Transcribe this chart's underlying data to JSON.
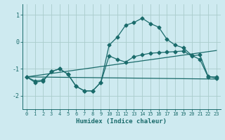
{
  "xlabel": "Humidex (Indice chaleur)",
  "background_color": "#ceeaf0",
  "grid_color": "#b8d8e0",
  "line_color": "#1a6b6b",
  "xlim": [
    -0.5,
    23.5
  ],
  "ylim": [
    -2.5,
    1.4
  ],
  "yticks": [
    -2,
    -1,
    0,
    1
  ],
  "xticks": [
    0,
    1,
    2,
    3,
    4,
    5,
    6,
    7,
    8,
    9,
    10,
    11,
    12,
    13,
    14,
    15,
    16,
    17,
    18,
    19,
    20,
    21,
    22,
    23
  ],
  "curve1_x": [
    0,
    1,
    2,
    3,
    4,
    5,
    6,
    7,
    8,
    9,
    10,
    11,
    12,
    13,
    14,
    15,
    16,
    17,
    18,
    19,
    20,
    21,
    22,
    23
  ],
  "curve1_y": [
    -1.3,
    -1.5,
    -1.45,
    -1.1,
    -1.0,
    -1.2,
    -1.65,
    -1.82,
    -1.82,
    -1.5,
    -0.12,
    0.18,
    0.62,
    0.72,
    0.88,
    0.68,
    0.55,
    0.1,
    -0.12,
    -0.22,
    -0.5,
    -0.65,
    -1.3,
    -1.3
  ],
  "curve2_x": [
    0,
    1,
    2,
    3,
    4,
    5,
    6,
    7,
    8,
    9,
    10,
    11,
    12,
    13,
    14,
    15,
    16,
    17,
    18,
    19,
    20,
    21,
    22,
    23
  ],
  "curve2_y": [
    -1.3,
    -1.45,
    -1.42,
    -1.1,
    -1.0,
    -1.2,
    -1.65,
    -1.82,
    -1.82,
    -1.5,
    -0.52,
    -0.65,
    -0.75,
    -0.55,
    -0.48,
    -0.42,
    -0.4,
    -0.38,
    -0.36,
    -0.34,
    -0.52,
    -0.48,
    -1.28,
    -1.35
  ],
  "line1_x": [
    0,
    23
  ],
  "line1_y": [
    -1.3,
    -1.38
  ],
  "line2_x": [
    0,
    23
  ],
  "line2_y": [
    -1.3,
    -0.32
  ]
}
